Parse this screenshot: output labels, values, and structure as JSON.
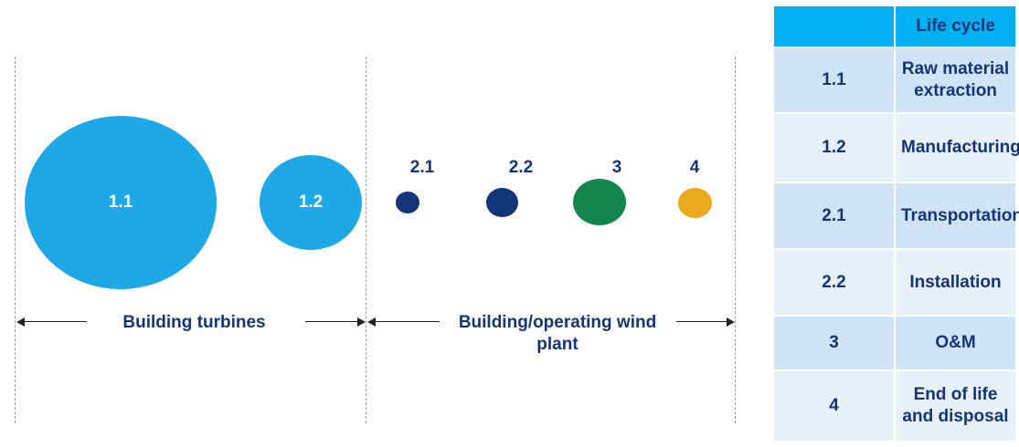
{
  "bubbles": [
    {
      "id": "1.1",
      "color": "#1fa8e8",
      "label_inside": true
    },
    {
      "id": "1.2",
      "color": "#1fa8e8",
      "label_inside": true
    },
    {
      "id": "2.1",
      "color": "#12357a",
      "label_inside": false
    },
    {
      "id": "2.2",
      "color": "#12357a",
      "label_inside": false
    },
    {
      "id": "3",
      "color": "#13874b",
      "label_inside": false
    },
    {
      "id": "4",
      "color": "#eaa91a",
      "label_inside": false
    }
  ],
  "phases": {
    "building_turbines": "Building turbines",
    "building_operating": "Building/operating wind plant"
  },
  "table": {
    "header_id": "",
    "header_label": "Life cycle",
    "rows": [
      {
        "id": "1.1",
        "label": "Raw material extraction"
      },
      {
        "id": "1.2",
        "label": "Manufacturing"
      },
      {
        "id": "2.1",
        "label": "Transportation"
      },
      {
        "id": "2.2",
        "label": "Installation"
      },
      {
        "id": "3",
        "label": "O&M"
      },
      {
        "id": "4",
        "label": "End of life and disposal"
      }
    ]
  },
  "colors": {
    "light_blue": "#1fa8e8",
    "dark_blue": "#12357a",
    "green": "#13874b",
    "gold": "#eaa91a",
    "header_cyan": "#00b0f0",
    "text_navy": "#13357a"
  }
}
